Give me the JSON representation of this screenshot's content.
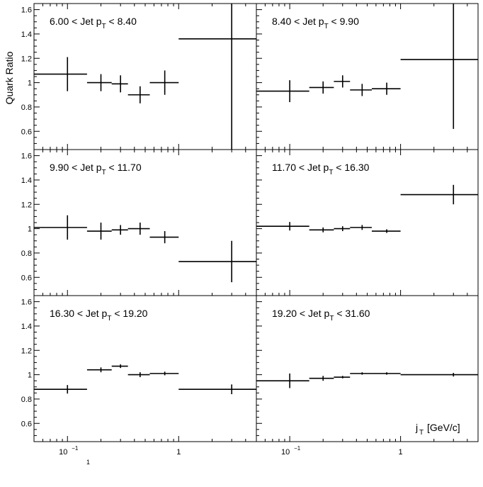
{
  "figure": {
    "ylabel": "Quark Ratio",
    "xlabel": "j",
    "xlabel_sub": "T",
    "xlabel_unit": "[GeV/c]",
    "stray_superscript": "1"
  },
  "chart_data": [
    {
      "type": "scatter",
      "title": "6.00 < Jet p_T < 8.40",
      "title_parts": {
        "pre": "6.00 < Jet p",
        "sub": "T",
        "post": " < 8.40"
      },
      "xscale": "log",
      "xlim": [
        0.05,
        5.0
      ],
      "ylim": [
        0.45,
        1.65
      ],
      "yticks": [
        "0.6",
        "0.8",
        "1",
        "1.2",
        "1.4",
        "1.6"
      ],
      "points": [
        {
          "x": 0.1,
          "xlo": 0.05,
          "xhi": 0.15,
          "y": 1.07,
          "ey": 0.14
        },
        {
          "x": 0.2,
          "xlo": 0.15,
          "xhi": 0.25,
          "y": 1.0,
          "ey": 0.07
        },
        {
          "x": 0.3,
          "xlo": 0.25,
          "xhi": 0.35,
          "y": 0.99,
          "ey": 0.07
        },
        {
          "x": 0.45,
          "xlo": 0.35,
          "xhi": 0.55,
          "y": 0.9,
          "ey": 0.07
        },
        {
          "x": 0.75,
          "xlo": 0.55,
          "xhi": 1.0,
          "y": 1.0,
          "ey": 0.1
        },
        {
          "x": 3.0,
          "xlo": 1.0,
          "xhi": 5.0,
          "y": 1.36,
          "ey": 0.95
        }
      ]
    },
    {
      "type": "scatter",
      "title": "8.40 < Jet p_T < 9.90",
      "title_parts": {
        "pre": "8.40 < Jet p",
        "sub": "T",
        "post": " < 9.90"
      },
      "xscale": "log",
      "xlim": [
        0.05,
        5.0
      ],
      "ylim": [
        0.45,
        1.65
      ],
      "yticks": [],
      "points": [
        {
          "x": 0.1,
          "xlo": 0.05,
          "xhi": 0.15,
          "y": 0.93,
          "ey": 0.09
        },
        {
          "x": 0.2,
          "xlo": 0.15,
          "xhi": 0.25,
          "y": 0.96,
          "ey": 0.05
        },
        {
          "x": 0.3,
          "xlo": 0.25,
          "xhi": 0.35,
          "y": 1.01,
          "ey": 0.05
        },
        {
          "x": 0.45,
          "xlo": 0.35,
          "xhi": 0.55,
          "y": 0.94,
          "ey": 0.05
        },
        {
          "x": 0.75,
          "xlo": 0.55,
          "xhi": 1.0,
          "y": 0.95,
          "ey": 0.05
        },
        {
          "x": 3.0,
          "xlo": 1.0,
          "xhi": 5.0,
          "y": 1.19,
          "ey": 0.57
        }
      ]
    },
    {
      "type": "scatter",
      "title": "9.90 < Jet p_T < 11.70",
      "title_parts": {
        "pre": "9.90 < Jet p",
        "sub": "T",
        "post": " < 11.70"
      },
      "xscale": "log",
      "xlim": [
        0.05,
        5.0
      ],
      "ylim": [
        0.45,
        1.65
      ],
      "yticks": [
        "0.6",
        "0.8",
        "1",
        "1.2",
        "1.4",
        "1.6"
      ],
      "points": [
        {
          "x": 0.1,
          "xlo": 0.05,
          "xhi": 0.15,
          "y": 1.01,
          "ey": 0.1
        },
        {
          "x": 0.2,
          "xlo": 0.15,
          "xhi": 0.25,
          "y": 0.98,
          "ey": 0.07
        },
        {
          "x": 0.3,
          "xlo": 0.25,
          "xhi": 0.35,
          "y": 0.99,
          "ey": 0.04
        },
        {
          "x": 0.45,
          "xlo": 0.35,
          "xhi": 0.55,
          "y": 1.0,
          "ey": 0.05
        },
        {
          "x": 0.75,
          "xlo": 0.55,
          "xhi": 1.0,
          "y": 0.93,
          "ey": 0.05
        },
        {
          "x": 3.0,
          "xlo": 1.0,
          "xhi": 5.0,
          "y": 0.73,
          "ey": 0.17
        }
      ]
    },
    {
      "type": "scatter",
      "title": "11.70 < Jet p_T < 16.30",
      "title_parts": {
        "pre": "11.70 < Jet p",
        "sub": "T",
        "post": " < 16.30"
      },
      "xscale": "log",
      "xlim": [
        0.05,
        5.0
      ],
      "ylim": [
        0.45,
        1.65
      ],
      "yticks": [],
      "points": [
        {
          "x": 0.1,
          "xlo": 0.05,
          "xhi": 0.15,
          "y": 1.02,
          "ey": 0.035
        },
        {
          "x": 0.2,
          "xlo": 0.15,
          "xhi": 0.25,
          "y": 0.99,
          "ey": 0.02
        },
        {
          "x": 0.3,
          "xlo": 0.25,
          "xhi": 0.35,
          "y": 1.0,
          "ey": 0.02
        },
        {
          "x": 0.45,
          "xlo": 0.35,
          "xhi": 0.55,
          "y": 1.01,
          "ey": 0.02
        },
        {
          "x": 0.75,
          "xlo": 0.55,
          "xhi": 1.0,
          "y": 0.98,
          "ey": 0.015
        },
        {
          "x": 3.0,
          "xlo": 1.0,
          "xhi": 5.0,
          "y": 1.28,
          "ey": 0.08
        }
      ]
    },
    {
      "type": "scatter",
      "title": "16.30 < Jet p_T < 19.20",
      "title_parts": {
        "pre": "16.30 < Jet p",
        "sub": "T",
        "post": " < 19.20"
      },
      "xscale": "log",
      "xlim": [
        0.05,
        5.0
      ],
      "ylim": [
        0.45,
        1.65
      ],
      "yticks": [
        "0.6",
        "0.8",
        "1",
        "1.2",
        "1.4",
        "1.6"
      ],
      "xticks": [
        "10",
        "1"
      ],
      "points": [
        {
          "x": 0.1,
          "xlo": 0.05,
          "xhi": 0.15,
          "y": 0.88,
          "ey": 0.035
        },
        {
          "x": 0.2,
          "xlo": 0.15,
          "xhi": 0.25,
          "y": 1.04,
          "ey": 0.02
        },
        {
          "x": 0.3,
          "xlo": 0.25,
          "xhi": 0.35,
          "y": 1.07,
          "ey": 0.015
        },
        {
          "x": 0.45,
          "xlo": 0.35,
          "xhi": 0.55,
          "y": 1.0,
          "ey": 0.02
        },
        {
          "x": 0.75,
          "xlo": 0.55,
          "xhi": 1.0,
          "y": 1.01,
          "ey": 0.015
        },
        {
          "x": 3.0,
          "xlo": 1.0,
          "xhi": 5.0,
          "y": 0.88,
          "ey": 0.04
        }
      ]
    },
    {
      "type": "scatter",
      "title": "19.20 < Jet p_T < 31.60",
      "title_parts": {
        "pre": "19.20 < Jet p",
        "sub": "T",
        "post": " < 31.60"
      },
      "xscale": "log",
      "xlim": [
        0.05,
        5.0
      ],
      "ylim": [
        0.45,
        1.65
      ],
      "yticks": [],
      "xticks": [
        "10",
        "1"
      ],
      "points": [
        {
          "x": 0.1,
          "xlo": 0.05,
          "xhi": 0.15,
          "y": 0.95,
          "ey": 0.06
        },
        {
          "x": 0.2,
          "xlo": 0.15,
          "xhi": 0.25,
          "y": 0.97,
          "ey": 0.02
        },
        {
          "x": 0.3,
          "xlo": 0.25,
          "xhi": 0.35,
          "y": 0.98,
          "ey": 0.01
        },
        {
          "x": 0.45,
          "xlo": 0.35,
          "xhi": 0.55,
          "y": 1.01,
          "ey": 0.01
        },
        {
          "x": 0.75,
          "xlo": 0.55,
          "xhi": 1.0,
          "y": 1.01,
          "ey": 0.01
        },
        {
          "x": 3.0,
          "xlo": 1.0,
          "xhi": 5.0,
          "y": 1.0,
          "ey": 0.015
        }
      ]
    }
  ]
}
